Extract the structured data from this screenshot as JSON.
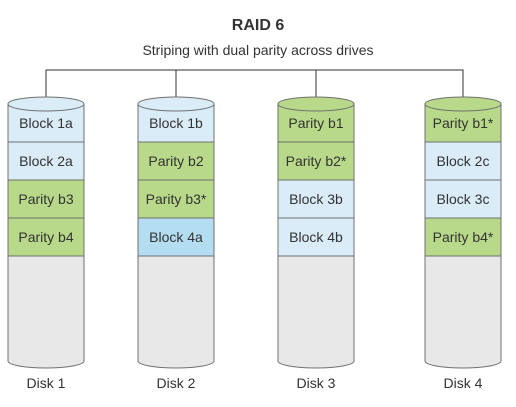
{
  "header": {
    "title": "RAID 6",
    "subtitle": "Striping with dual parity across drives"
  },
  "colors": {
    "data_block": "#d9ecf7",
    "data_block_highlight": "#b5ddf2",
    "parity_block": "#b9d98a",
    "empty_disk": "#e8e8e8",
    "outline": "#707070",
    "connector": "#333333"
  },
  "disks": [
    {
      "label": "Disk 1",
      "blocks": [
        {
          "label": "Block 1a",
          "kind": "data"
        },
        {
          "label": "Block 2a",
          "kind": "data"
        },
        {
          "label": "Parity b3",
          "kind": "parity"
        },
        {
          "label": "Parity b4",
          "kind": "parity"
        }
      ]
    },
    {
      "label": "Disk 2",
      "blocks": [
        {
          "label": "Block 1b",
          "kind": "data"
        },
        {
          "label": "Parity b2",
          "kind": "parity"
        },
        {
          "label": "Parity b3*",
          "kind": "parity"
        },
        {
          "label": "Block 4a",
          "kind": "data_highlight"
        }
      ]
    },
    {
      "label": "Disk 3",
      "blocks": [
        {
          "label": "Parity b1",
          "kind": "parity"
        },
        {
          "label": "Parity b2*",
          "kind": "parity"
        },
        {
          "label": "Block 3b",
          "kind": "data"
        },
        {
          "label": "Block 4b",
          "kind": "data"
        }
      ]
    },
    {
      "label": "Disk 4",
      "blocks": [
        {
          "label": "Parity b1*",
          "kind": "parity"
        },
        {
          "label": "Block 2c",
          "kind": "data"
        },
        {
          "label": "Block 3c",
          "kind": "data"
        },
        {
          "label": "Parity b4*",
          "kind": "parity"
        }
      ]
    }
  ]
}
